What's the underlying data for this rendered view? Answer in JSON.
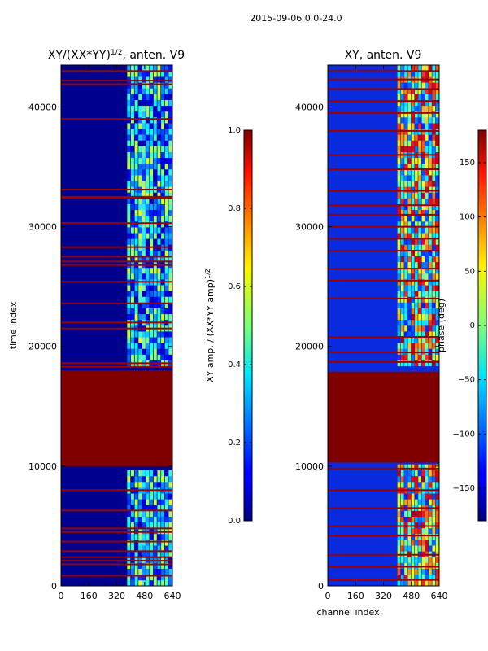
{
  "figure_title": "2015-09-06 0.0-24.0",
  "chart_data": [
    {
      "type": "heatmap",
      "title_main": "XY/(XX*YY)",
      "title_sup": "1/2",
      "title_rest": ", anten. V9",
      "ylabel": "time index",
      "xlabel": "",
      "xlim": [
        0,
        640
      ],
      "ylim": [
        0,
        43500
      ],
      "xticks": [
        0,
        160,
        320,
        480,
        640
      ],
      "yticks": [
        0,
        10000,
        20000,
        30000,
        40000
      ],
      "colorbar": {
        "label_main": "XY amp. / (XX*YY amp)",
        "label_sup": "1/2",
        "min": 0.0,
        "max": 1.0,
        "ticks": [
          "0.0",
          "0.2",
          "0.4",
          "0.6",
          "0.8",
          "1.0"
        ]
      },
      "features": {
        "saturated_time_range": [
          10000,
          18000
        ],
        "active_channel_range": [
          380,
          640
        ],
        "flagged_rows": [
          850,
          1800,
          2100,
          2400,
          2900,
          3700,
          4500,
          4800,
          6300,
          8000,
          18300,
          18600,
          21500,
          22000,
          23600,
          25400,
          26800,
          27100,
          27500,
          28300,
          30300,
          32400,
          32500,
          33100,
          39000,
          41900,
          42200,
          43000
        ]
      }
    },
    {
      "type": "heatmap",
      "title_main": "XY, anten. V9",
      "xlabel": "channel index",
      "ylabel": "",
      "xlim": [
        0,
        640
      ],
      "ylim": [
        0,
        43500
      ],
      "xticks": [
        0,
        160,
        320,
        480,
        640
      ],
      "yticks": [
        0,
        10000,
        20000,
        30000,
        40000
      ],
      "colorbar": {
        "label": "phase (deg)",
        "min": -180,
        "max": 180,
        "ticks": [
          "−150",
          "−100",
          "−50",
          "0",
          "50",
          "100",
          "150"
        ]
      },
      "features": {
        "saturated_time_range": [
          10300,
          17900
        ],
        "active_channel_range": [
          400,
          640
        ],
        "flagged_rows": [
          500,
          1600,
          2600,
          4200,
          5000,
          6500,
          8000,
          9800,
          18700,
          19500,
          20800,
          24000,
          25500,
          26500,
          28000,
          29000,
          30000,
          31000,
          31800,
          33000,
          34800,
          36000,
          38000,
          39500,
          40500,
          41500,
          42300,
          43000
        ]
      }
    }
  ]
}
